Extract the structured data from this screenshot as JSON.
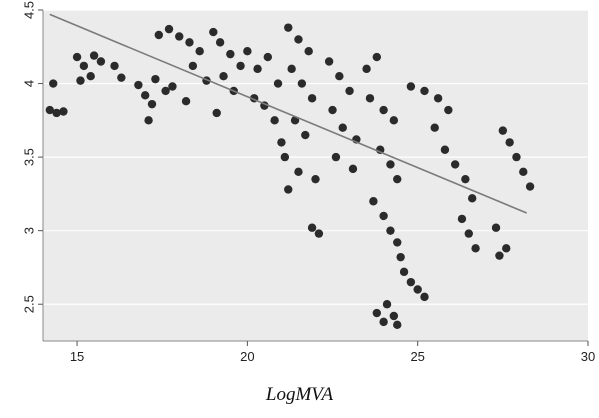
{
  "chart_data": {
    "type": "scatter",
    "title": "",
    "xlabel": "LogMVA",
    "ylabel": "",
    "xlim": [
      14,
      30
    ],
    "ylim": [
      2.25,
      4.5
    ],
    "x_ticks": [
      15,
      20,
      25,
      30
    ],
    "y_ticks": [
      2.5,
      3,
      3.5,
      4,
      4.5
    ],
    "grid": "horizontal",
    "legend": "none",
    "colors": {
      "plot_background": "#ebebeb",
      "points": "#2b2b2b",
      "fit_line": "#7a7a7a",
      "gridline": "#ffffff"
    },
    "fit_line": {
      "x": [
        14.2,
        28.2
      ],
      "y": [
        4.47,
        3.12
      ]
    },
    "series": [
      {
        "points": [
          [
            14.2,
            3.82
          ],
          [
            14.4,
            3.8
          ],
          [
            14.6,
            3.81
          ],
          [
            14.3,
            4.0
          ],
          [
            15.0,
            4.18
          ],
          [
            15.2,
            4.12
          ],
          [
            15.5,
            4.19
          ],
          [
            15.7,
            4.15
          ],
          [
            15.4,
            4.05
          ],
          [
            15.1,
            4.02
          ],
          [
            16.1,
            4.12
          ],
          [
            16.3,
            4.04
          ],
          [
            16.8,
            3.99
          ],
          [
            17.0,
            3.92
          ],
          [
            17.2,
            3.86
          ],
          [
            17.1,
            3.75
          ],
          [
            17.3,
            4.03
          ],
          [
            17.6,
            3.95
          ],
          [
            17.8,
            3.98
          ],
          [
            17.4,
            4.33
          ],
          [
            17.7,
            4.37
          ],
          [
            18.0,
            4.32
          ],
          [
            18.3,
            4.28
          ],
          [
            18.6,
            4.22
          ],
          [
            18.4,
            4.12
          ],
          [
            18.8,
            4.02
          ],
          [
            18.2,
            3.88
          ],
          [
            19.0,
            4.35
          ],
          [
            19.2,
            4.28
          ],
          [
            19.5,
            4.2
          ],
          [
            19.3,
            4.05
          ],
          [
            19.8,
            4.12
          ],
          [
            19.6,
            3.95
          ],
          [
            19.1,
            3.8
          ],
          [
            20.0,
            4.22
          ],
          [
            20.3,
            4.1
          ],
          [
            20.6,
            4.18
          ],
          [
            20.9,
            4.0
          ],
          [
            20.2,
            3.9
          ],
          [
            20.5,
            3.85
          ],
          [
            20.8,
            3.75
          ],
          [
            21.0,
            3.6
          ],
          [
            21.2,
            4.38
          ],
          [
            21.5,
            4.3
          ],
          [
            21.8,
            4.22
          ],
          [
            21.3,
            4.1
          ],
          [
            21.6,
            4.0
          ],
          [
            21.9,
            3.9
          ],
          [
            21.4,
            3.75
          ],
          [
            21.7,
            3.65
          ],
          [
            21.1,
            3.5
          ],
          [
            21.5,
            3.4
          ],
          [
            21.2,
            3.28
          ],
          [
            22.0,
            3.35
          ],
          [
            21.9,
            3.02
          ],
          [
            22.1,
            2.98
          ],
          [
            22.4,
            4.15
          ],
          [
            22.7,
            4.05
          ],
          [
            23.0,
            3.95
          ],
          [
            22.5,
            3.82
          ],
          [
            22.8,
            3.7
          ],
          [
            23.2,
            3.62
          ],
          [
            22.6,
            3.5
          ],
          [
            23.1,
            3.42
          ],
          [
            23.5,
            4.1
          ],
          [
            23.8,
            4.18
          ],
          [
            23.6,
            3.9
          ],
          [
            24.0,
            3.82
          ],
          [
            24.3,
            3.75
          ],
          [
            23.9,
            3.55
          ],
          [
            24.2,
            3.45
          ],
          [
            24.4,
            3.35
          ],
          [
            23.7,
            3.2
          ],
          [
            24.0,
            3.1
          ],
          [
            24.2,
            3.0
          ],
          [
            24.4,
            2.92
          ],
          [
            24.5,
            2.82
          ],
          [
            24.6,
            2.72
          ],
          [
            24.8,
            2.65
          ],
          [
            25.0,
            2.6
          ],
          [
            25.2,
            2.55
          ],
          [
            24.1,
            2.5
          ],
          [
            24.3,
            2.42
          ],
          [
            23.8,
            2.44
          ],
          [
            24.0,
            2.38
          ],
          [
            24.4,
            2.36
          ],
          [
            24.8,
            3.98
          ],
          [
            25.2,
            3.95
          ],
          [
            25.6,
            3.9
          ],
          [
            25.9,
            3.82
          ],
          [
            25.5,
            3.7
          ],
          [
            25.8,
            3.55
          ],
          [
            26.1,
            3.45
          ],
          [
            26.4,
            3.35
          ],
          [
            26.6,
            3.22
          ],
          [
            26.3,
            3.08
          ],
          [
            26.5,
            2.98
          ],
          [
            26.7,
            2.88
          ],
          [
            27.3,
            3.02
          ],
          [
            27.6,
            2.88
          ],
          [
            27.4,
            2.83
          ],
          [
            27.5,
            3.68
          ],
          [
            27.7,
            3.6
          ],
          [
            27.9,
            3.5
          ],
          [
            28.1,
            3.4
          ],
          [
            28.3,
            3.3
          ]
        ]
      }
    ]
  }
}
